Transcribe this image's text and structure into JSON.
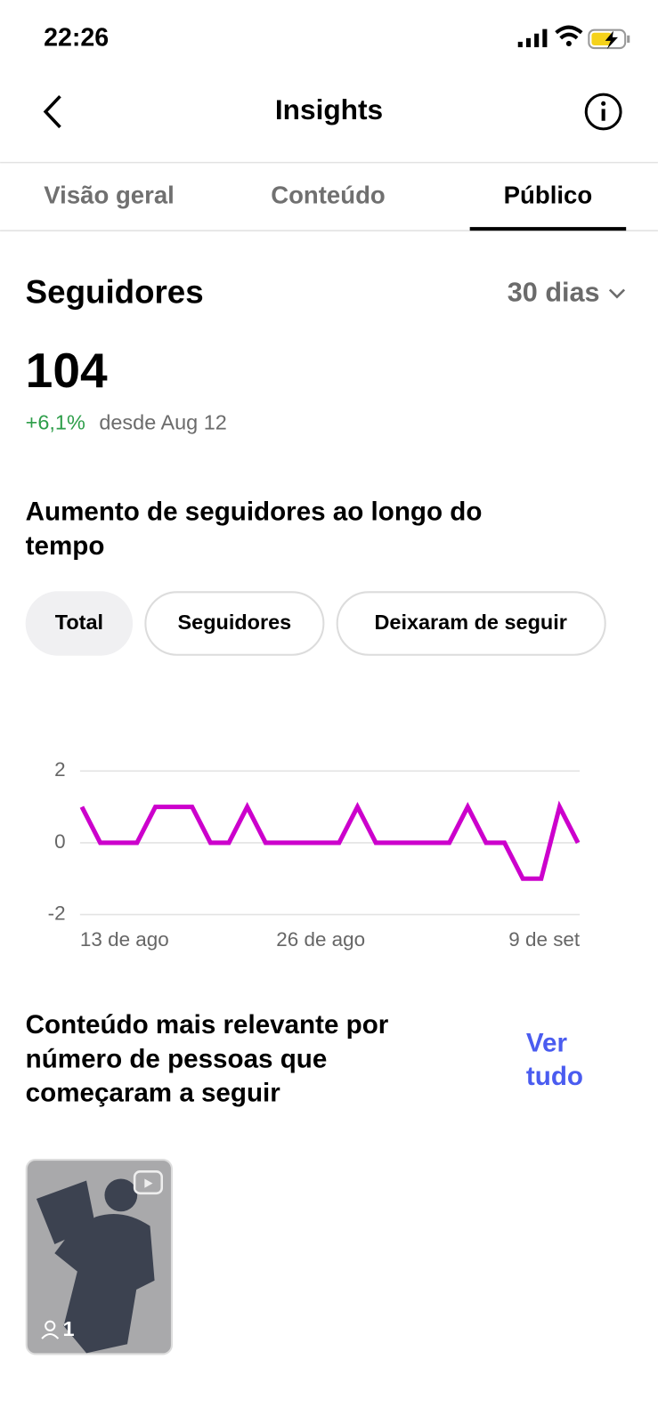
{
  "status_bar": {
    "time": "22:26"
  },
  "header": {
    "title": "Insights"
  },
  "tabs": [
    "Visão geral",
    "Conteúdo",
    "Público"
  ],
  "followers": {
    "title": "Seguidores",
    "period": "30 dias",
    "count": "104",
    "change": "+6,1%",
    "since": "desde Aug 12"
  },
  "filters": [
    "Total",
    "Seguidores",
    "Deixaram de seguir"
  ],
  "chart_data": {
    "type": "line",
    "title": [
      "Aumento de seguidores ao longo do",
      "tempo"
    ],
    "categories": [
      "13 de ago",
      null,
      null,
      null,
      null,
      null,
      null,
      null,
      null,
      null,
      null,
      null,
      null,
      "26 de ago",
      null,
      null,
      null,
      null,
      null,
      null,
      null,
      null,
      null,
      null,
      null,
      null,
      null,
      "9 de set"
    ],
    "values": [
      1,
      0,
      0,
      0,
      1,
      1,
      1,
      0,
      0,
      1,
      0,
      0,
      0,
      0,
      0,
      1,
      0,
      0,
      0,
      0,
      0,
      1,
      0,
      0,
      -1,
      -1,
      1,
      0
    ],
    "color": "#cc00cc",
    "ylim": [
      -2,
      2
    ],
    "yticks": [
      2,
      0,
      -2
    ],
    "grid": true
  },
  "top_content": {
    "title": [
      "Conteúdo mais relevante por",
      "número de pessoas que",
      "começaram a seguir"
    ],
    "see_all": [
      "Ver",
      "tudo"
    ],
    "items": [
      {
        "new_followers": "1"
      }
    ]
  }
}
